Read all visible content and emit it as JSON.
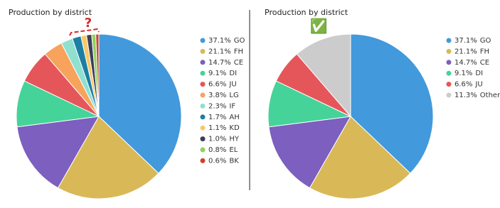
{
  "chart_data": [
    {
      "type": "pie",
      "title": "Production by district",
      "annotation": "?",
      "categories": [
        "GO",
        "FH",
        "CE",
        "DI",
        "JU",
        "LG",
        "IF",
        "AH",
        "KD",
        "HY",
        "EL",
        "BK"
      ],
      "values": [
        37.1,
        21.1,
        14.7,
        9.1,
        6.6,
        3.8,
        2.3,
        1.7,
        1.1,
        1.0,
        0.8,
        0.6
      ],
      "value_labels": [
        "37.1%",
        "21.1%",
        "14.7%",
        "9.1%",
        "6.6%",
        "3.8%",
        "2.3%",
        "1.7%",
        "1.1%",
        "1.0%",
        "0.8%",
        "0.6%"
      ],
      "colors": [
        "#4299db",
        "#d9b957",
        "#7c5fbf",
        "#45d39a",
        "#e5565a",
        "#f7a35c",
        "#90e0d0",
        "#1c7fa3",
        "#f5c96a",
        "#3d3d5c",
        "#8fd35b",
        "#c8442f"
      ]
    },
    {
      "type": "pie",
      "title": "Production by district",
      "annotation": "✅",
      "categories": [
        "GO",
        "FH",
        "CE",
        "DI",
        "JU",
        "Other"
      ],
      "values": [
        37.1,
        21.1,
        14.7,
        9.1,
        6.6,
        11.3
      ],
      "value_labels": [
        "37.1%",
        "21.1%",
        "14.7%",
        "9.1%",
        "6.6%",
        "11.3%"
      ],
      "colors": [
        "#4299db",
        "#d9b957",
        "#7c5fbf",
        "#45d39a",
        "#e5565a",
        "#cccccc"
      ]
    }
  ]
}
